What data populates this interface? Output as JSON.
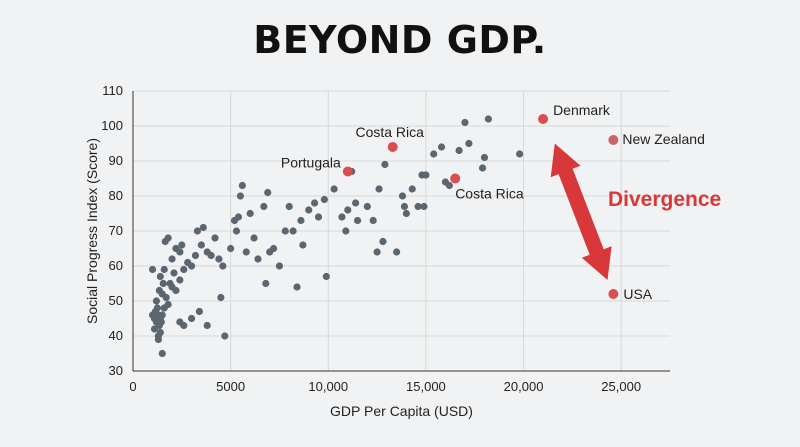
{
  "title": "BEYOND GDP.",
  "chart_data": {
    "type": "scatter",
    "xlabel": "GDP Per Capita (USD)",
    "ylabel": "Social Progress Index (Score)",
    "xlim": [
      0,
      27500
    ],
    "ylim": [
      30,
      110
    ],
    "x_ticks": [
      0,
      5000,
      10000,
      15000,
      20000,
      25000
    ],
    "x_tick_labels": [
      "0",
      "5000",
      "10,000",
      "15,000",
      "20,000",
      "25,000"
    ],
    "y_ticks": [
      30,
      40,
      50,
      60,
      70,
      80,
      90,
      100,
      110
    ],
    "y_tick_labels": [
      "30",
      "40",
      "50",
      "60",
      "70",
      "80",
      "90",
      "100",
      "110"
    ],
    "grid": true,
    "colors": {
      "point": "#5b6670",
      "highlight": "#d94f4f",
      "highlight_light": "#c86464",
      "arrow": "#d8383a"
    },
    "points": [
      [
        1000,
        46
      ],
      [
        1100,
        45
      ],
      [
        1150,
        47
      ],
      [
        1200,
        44
      ],
      [
        1300,
        46
      ],
      [
        1350,
        43
      ],
      [
        1400,
        45
      ],
      [
        1250,
        48
      ],
      [
        1450,
        44
      ],
      [
        1500,
        46
      ],
      [
        1100,
        42
      ],
      [
        1300,
        40
      ],
      [
        1400,
        41
      ],
      [
        1200,
        50
      ],
      [
        1500,
        52
      ],
      [
        1600,
        48
      ],
      [
        1350,
        53
      ],
      [
        1700,
        51
      ],
      [
        1550,
        55
      ],
      [
        1800,
        49
      ],
      [
        1000,
        59
      ],
      [
        1400,
        57
      ],
      [
        1600,
        59
      ],
      [
        1900,
        55
      ],
      [
        2000,
        54
      ],
      [
        2100,
        58
      ],
      [
        2200,
        53
      ],
      [
        2400,
        56
      ],
      [
        1500,
        35
      ],
      [
        1300,
        39
      ],
      [
        1650,
        67
      ],
      [
        1800,
        68
      ],
      [
        2000,
        62
      ],
      [
        2200,
        65
      ],
      [
        2400,
        64
      ],
      [
        2500,
        66
      ],
      [
        2600,
        59
      ],
      [
        2800,
        61
      ],
      [
        3000,
        60
      ],
      [
        3200,
        63
      ],
      [
        3300,
        70
      ],
      [
        3500,
        66
      ],
      [
        3600,
        71
      ],
      [
        3800,
        64
      ],
      [
        4000,
        63
      ],
      [
        4200,
        68
      ],
      [
        4400,
        62
      ],
      [
        4600,
        60
      ],
      [
        4500,
        51
      ],
      [
        3800,
        43
      ],
      [
        2400,
        44
      ],
      [
        2600,
        43
      ],
      [
        3000,
        45
      ],
      [
        3400,
        47
      ],
      [
        4700,
        40
      ],
      [
        5000,
        65
      ],
      [
        5200,
        73
      ],
      [
        5400,
        74
      ],
      [
        5500,
        80
      ],
      [
        5600,
        83
      ],
      [
        5300,
        70
      ],
      [
        5800,
        64
      ],
      [
        6000,
        75
      ],
      [
        6200,
        68
      ],
      [
        6400,
        62
      ],
      [
        6700,
        77
      ],
      [
        6900,
        81
      ],
      [
        7000,
        64
      ],
      [
        7200,
        65
      ],
      [
        7500,
        60
      ],
      [
        8000,
        77
      ],
      [
        8200,
        70
      ],
      [
        8400,
        54
      ],
      [
        8600,
        73
      ],
      [
        8700,
        66
      ],
      [
        9000,
        76
      ],
      [
        9300,
        78
      ],
      [
        9500,
        74
      ],
      [
        9800,
        79
      ],
      [
        9900,
        57
      ],
      [
        10300,
        82
      ],
      [
        10700,
        74
      ],
      [
        10900,
        70
      ],
      [
        11000,
        76
      ],
      [
        11200,
        87
      ],
      [
        11400,
        78
      ],
      [
        12000,
        77
      ],
      [
        12300,
        73
      ],
      [
        12600,
        82
      ],
      [
        12800,
        67
      ],
      [
        12900,
        89
      ],
      [
        13500,
        64
      ],
      [
        13800,
        80
      ],
      [
        14000,
        75
      ],
      [
        14300,
        82
      ],
      [
        14600,
        77
      ],
      [
        14800,
        86
      ],
      [
        15000,
        86
      ],
      [
        15400,
        92
      ],
      [
        15800,
        94
      ],
      [
        16000,
        84
      ],
      [
        16200,
        83
      ],
      [
        16700,
        93
      ],
      [
        17000,
        101
      ],
      [
        17200,
        95
      ],
      [
        17900,
        88
      ],
      [
        18000,
        91
      ],
      [
        18200,
        102
      ],
      [
        19800,
        92
      ],
      [
        13900,
        77
      ],
      [
        14900,
        77
      ],
      [
        12500,
        64
      ],
      [
        11500,
        73
      ],
      [
        6800,
        55
      ],
      [
        7800,
        70
      ]
    ],
    "labeled_points": [
      {
        "label": "Denmark",
        "x": 21000,
        "y": 102
      },
      {
        "label": "New Zealand",
        "x": 24600,
        "y": 96
      },
      {
        "label": "Costa Rica",
        "x": 13300,
        "y": 94
      },
      {
        "label": "Portugala",
        "x": 11000,
        "y": 87
      },
      {
        "label": "Costa Rica",
        "x": 16500,
        "y": 85
      },
      {
        "label": "USA",
        "x": 24600,
        "y": 52
      }
    ],
    "annotation": {
      "text": "Divergence",
      "from": [
        21600,
        95
      ],
      "to": [
        24300,
        56
      ]
    }
  }
}
